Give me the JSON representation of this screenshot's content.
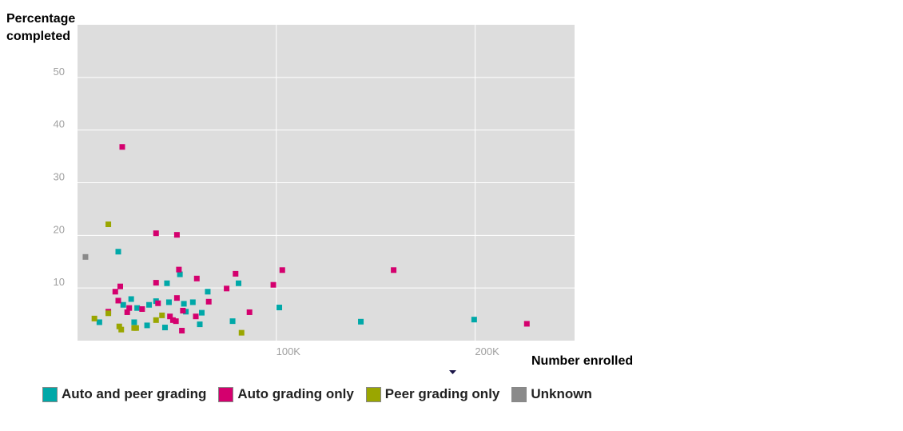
{
  "chart_data": {
    "type": "scatter",
    "title": "",
    "xlabel": "Number enrolled",
    "ylabel_line1": "Percentage",
    "ylabel_line2": "completed",
    "xlim": [
      0,
      250000
    ],
    "ylim": [
      0,
      60
    ],
    "x_ticks": [
      {
        "value": 100000,
        "label": "100K"
      },
      {
        "value": 200000,
        "label": "200K"
      }
    ],
    "y_ticks": [
      {
        "value": 10,
        "label": "10"
      },
      {
        "value": 20,
        "label": "20"
      },
      {
        "value": 30,
        "label": "30"
      },
      {
        "value": 40,
        "label": "40"
      },
      {
        "value": 50,
        "label": "50"
      }
    ],
    "grid": true,
    "legend_position": "bottom-left",
    "series": [
      {
        "name": "Auto and peer grading",
        "color": "#00a8a8",
        "points": [
          [
            11000,
            3.5
          ],
          [
            20500,
            16.9
          ],
          [
            23000,
            6.8
          ],
          [
            27000,
            7.9
          ],
          [
            28500,
            3.5
          ],
          [
            30000,
            6.2
          ],
          [
            35000,
            2.9
          ],
          [
            36000,
            6.8
          ],
          [
            39500,
            7.5
          ],
          [
            44000,
            2.5
          ],
          [
            45000,
            10.9
          ],
          [
            46000,
            7.3
          ],
          [
            51500,
            12.6
          ],
          [
            53500,
            7.0
          ],
          [
            54500,
            5.5
          ],
          [
            58000,
            7.3
          ],
          [
            61500,
            3.1
          ],
          [
            62500,
            5.3
          ],
          [
            65500,
            9.3
          ],
          [
            78000,
            3.7
          ],
          [
            81000,
            10.9
          ],
          [
            101500,
            6.3
          ],
          [
            142500,
            3.6
          ],
          [
            199500,
            4.0
          ]
        ]
      },
      {
        "name": "Auto grading only",
        "color": "#d4006e",
        "points": [
          [
            15500,
            5.5
          ],
          [
            19000,
            9.3
          ],
          [
            20500,
            7.6
          ],
          [
            21500,
            10.3
          ],
          [
            22500,
            36.8
          ],
          [
            25000,
            5.4
          ],
          [
            26000,
            6.2
          ],
          [
            32500,
            6.0
          ],
          [
            39500,
            20.4
          ],
          [
            39500,
            11.0
          ],
          [
            40500,
            7.1
          ],
          [
            46500,
            4.6
          ],
          [
            48000,
            3.9
          ],
          [
            49500,
            3.7
          ],
          [
            50000,
            20.1
          ],
          [
            50000,
            8.1
          ],
          [
            51000,
            13.5
          ],
          [
            52500,
            1.9
          ],
          [
            53000,
            5.7
          ],
          [
            59500,
            4.6
          ],
          [
            60000,
            11.8
          ],
          [
            66000,
            7.4
          ],
          [
            75000,
            9.9
          ],
          [
            79500,
            12.7
          ],
          [
            86500,
            5.4
          ],
          [
            98500,
            10.6
          ],
          [
            103000,
            13.4
          ],
          [
            159000,
            13.4
          ],
          [
            226000,
            3.2
          ]
        ]
      },
      {
        "name": "Peer grading only",
        "color": "#9aa600",
        "points": [
          [
            8500,
            4.2
          ],
          [
            15500,
            22.1
          ],
          [
            15500,
            5.2
          ],
          [
            21000,
            2.7
          ],
          [
            22000,
            2.1
          ],
          [
            28500,
            2.4
          ],
          [
            29500,
            2.4
          ],
          [
            39500,
            3.9
          ],
          [
            42500,
            4.8
          ],
          [
            82500,
            1.5
          ]
        ]
      },
      {
        "name": "Unknown",
        "color": "#8a8a8a",
        "points": [
          [
            4000,
            15.9
          ]
        ]
      }
    ]
  }
}
